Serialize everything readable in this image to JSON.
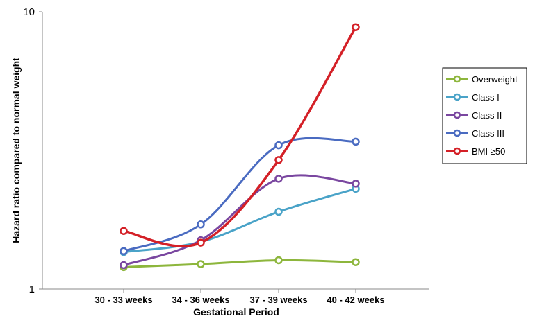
{
  "chart_data": {
    "type": "line",
    "title": "",
    "xlabel": "Gestational Period",
    "ylabel": "Hazard ratio compared to normal weight",
    "yscale": "log",
    "ylim": [
      1,
      10
    ],
    "yticks": [
      "1",
      "10"
    ],
    "categories": [
      "30 - 33 weeks",
      "34 - 36 weeks",
      "37 - 39 weeks",
      "40 - 42 weeks"
    ],
    "grid": false,
    "legend_position": "right",
    "series": [
      {
        "name": "Overweight",
        "color": "#8db63c",
        "values": [
          1.2,
          1.23,
          1.27,
          1.25
        ]
      },
      {
        "name": "Class I",
        "color": "#4aa3c8",
        "values": [
          1.36,
          1.48,
          1.9,
          2.3
        ]
      },
      {
        "name": "Class II",
        "color": "#7a47a0",
        "values": [
          1.22,
          1.5,
          2.5,
          2.4
        ]
      },
      {
        "name": "Class III",
        "color": "#4a6bc1",
        "values": [
          1.37,
          1.71,
          3.3,
          3.4
        ]
      },
      {
        "name": "BMI ≥50",
        "color": "#d42027",
        "values": [
          1.62,
          1.47,
          2.92,
          8.8
        ]
      }
    ]
  }
}
